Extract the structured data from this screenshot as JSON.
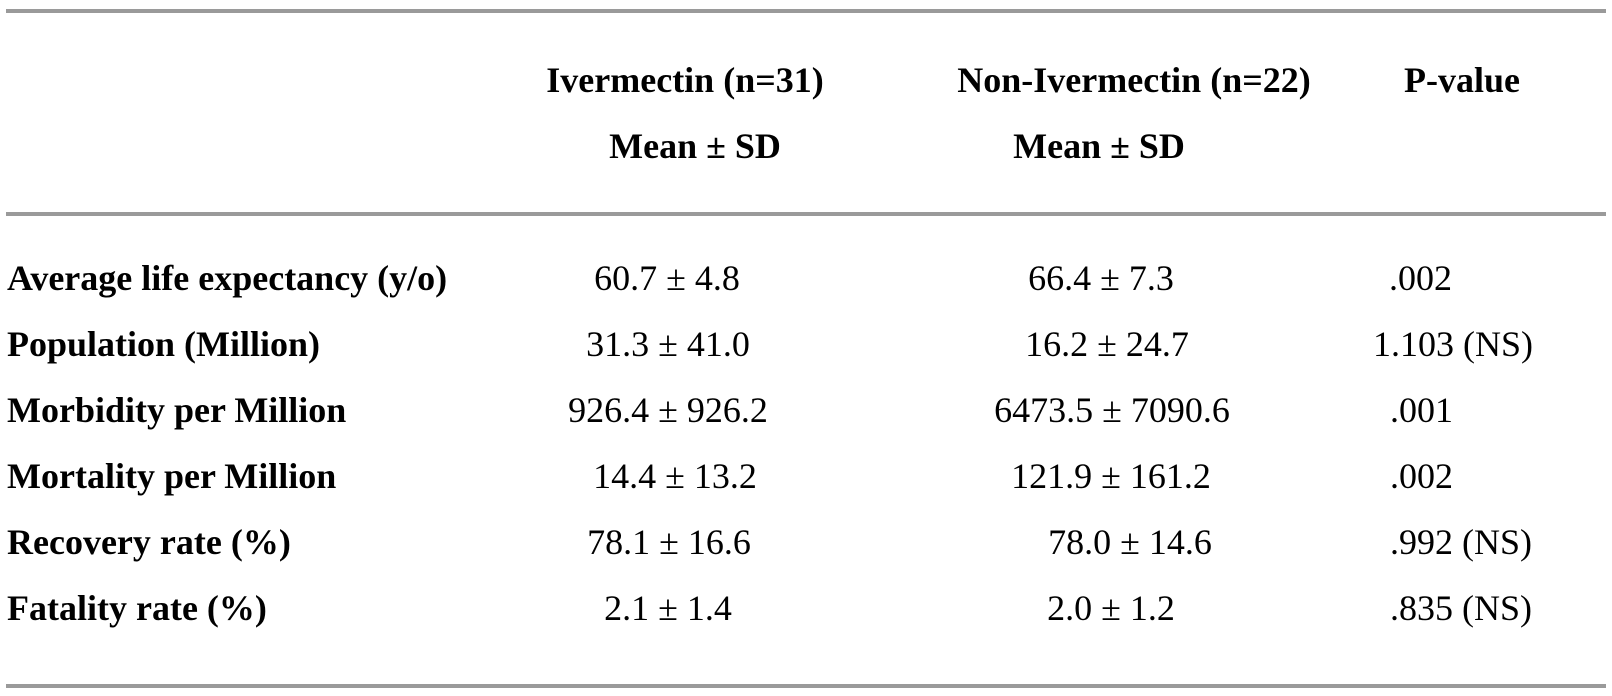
{
  "table": {
    "header": {
      "col1_line1": "Ivermectin (n=31)",
      "col1_line2": "Mean ± SD",
      "col2_line1": "Non-Ivermectin (n=22)",
      "col2_line2": "Mean ± SD",
      "col3": "P-value"
    },
    "rows": [
      {
        "label": "Average life expectancy (y/o)",
        "ivermectin": "60.7 ± 4.8",
        "non_ivermectin": "66.4 ± 7.3",
        "p_value": ".002"
      },
      {
        "label": "Population (Million)",
        "ivermectin": "31.3 ± 41.0",
        "non_ivermectin": "16.2 ± 24.7",
        "p_value": "1.103 (NS)"
      },
      {
        "label": "Morbidity per Million",
        "ivermectin": "926.4 ± 926.2",
        "non_ivermectin": "6473.5 ± 7090.6",
        "p_value": ".001"
      },
      {
        "label": "Mortality per Million",
        "ivermectin": "14.4 ± 13.2",
        "non_ivermectin": "121.9 ± 161.2",
        "p_value": ".002"
      },
      {
        "label": "Recovery rate (%)",
        "ivermectin": "78.1 ± 16.6",
        "non_ivermectin": "78.0 ± 14.6",
        "p_value": ".992 (NS)"
      },
      {
        "label": "Fatality rate (%)",
        "ivermectin": "2.1 ± 1.4",
        "non_ivermectin": "2.0 ± 1.2",
        "p_value": ".835 (NS)"
      }
    ]
  }
}
